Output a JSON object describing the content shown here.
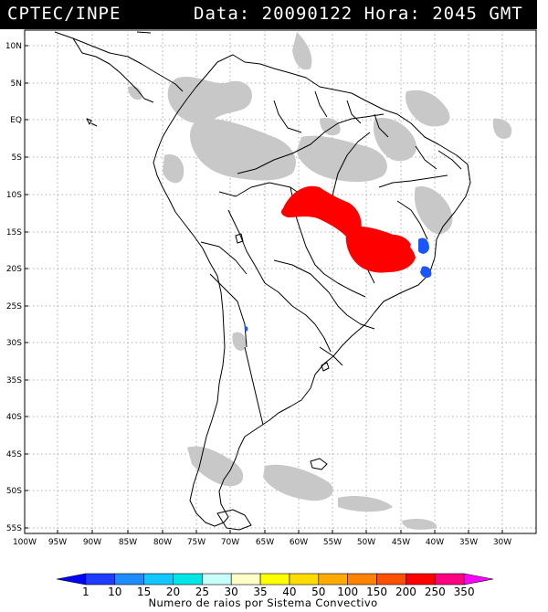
{
  "header": {
    "agency": "CPTEC/INPE",
    "datetime": "Data: 20090122 Hora: 2045 GMT"
  },
  "map": {
    "lat_labels": [
      "10N",
      "5N",
      "EQ",
      "5S",
      "10S",
      "15S",
      "20S",
      "25S",
      "30S",
      "35S",
      "40S",
      "45S",
      "50S",
      "55S"
    ],
    "lon_labels": [
      "100W",
      "95W",
      "90W",
      "85W",
      "80W",
      "75W",
      "70W",
      "65W",
      "60W",
      "55W",
      "50W",
      "45W",
      "40W",
      "35W",
      "30W"
    ],
    "layers": {
      "cloud_color": "#c8c8c8",
      "lightning_color_main": "#ff0000",
      "lightning_color_low": "#1a55ff"
    }
  },
  "colorbar": {
    "labels": [
      "1",
      "10",
      "15",
      "20",
      "25",
      "30",
      "35",
      "40",
      "50",
      "100",
      "150",
      "200",
      "250",
      "350"
    ],
    "colors": [
      "#0000ff",
      "#1e3cff",
      "#1e8cff",
      "#10c8ff",
      "#00e6e6",
      "#c8fffa",
      "#ffffc8",
      "#ffff00",
      "#ffdc00",
      "#ffaa00",
      "#ff8200",
      "#ff5000",
      "#ff0000",
      "#ff0080",
      "#ff00ff"
    ],
    "title": "Numero de raios por Sistema Convectivo"
  }
}
